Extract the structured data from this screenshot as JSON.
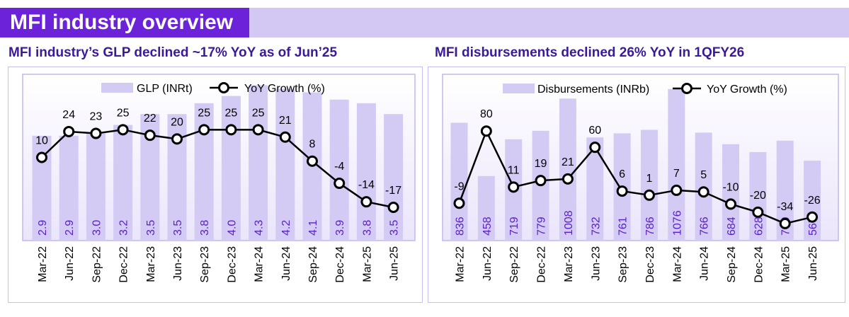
{
  "header": {
    "title": "MFI industry overview"
  },
  "colors": {
    "accent": "#6b22d8",
    "band": "#d3c8f3",
    "bar": "#d4cbf5",
    "bar_label": "#5a1fc8",
    "plot_bg_top": "#ffffff",
    "plot_bg_bottom": "#ebe5fb",
    "plot_border": "#c3b6ee",
    "line": "#000000"
  },
  "chart_data": [
    {
      "type": "bar",
      "title": "MFI industry’s GLP declined ~17% YoY as of Jun’25",
      "categories": [
        "Mar-22",
        "Jun-22",
        "Sep-22",
        "Dec-22",
        "Mar-23",
        "Jun-23",
        "Sep-23",
        "Dec-23",
        "Mar-24",
        "Jun-24",
        "Sep-24",
        "Dec-24",
        "Mar-25",
        "Jun-25"
      ],
      "series": [
        {
          "name": "GLP (INRt)",
          "type": "bar",
          "values": [
            2.9,
            2.9,
            3.0,
            3.2,
            3.5,
            3.5,
            3.8,
            4.0,
            4.3,
            4.2,
            4.1,
            3.9,
            3.8,
            3.5
          ],
          "labels": [
            "2.9",
            "2.9",
            "3.0",
            "3.2",
            "3.5",
            "3.5",
            "3.8",
            "4.0",
            "4.3",
            "4.2",
            "4.1",
            "3.9",
            "3.8",
            "3.5"
          ]
        },
        {
          "name": "YoY Growth (%)",
          "type": "line",
          "values": [
            10,
            24,
            23,
            25,
            22,
            20,
            25,
            25,
            25,
            21,
            8,
            -4,
            -14,
            -17
          ],
          "labels": [
            "10",
            "24",
            "23",
            "25",
            "22",
            "20",
            "25",
            "25",
            "25",
            "21",
            "8",
            "-4",
            "-14",
            "-17"
          ]
        }
      ],
      "bar_range": [
        0,
        4.6
      ],
      "line_range": [
        -35,
        55
      ],
      "legend_position": "top",
      "grid": false
    },
    {
      "type": "bar",
      "title": "MFI disbursements declined 26% YoY in 1QFY26",
      "categories": [
        "Mar-22",
        "Jun-22",
        "Sep-22",
        "Dec-22",
        "Mar-23",
        "Jun-23",
        "Sep-23",
        "Dec-23",
        "Mar-24",
        "Jun-24",
        "Sep-24",
        "Dec-24",
        "Mar-25",
        "Jun-25"
      ],
      "series": [
        {
          "name": "Disbursements (INRb)",
          "type": "bar",
          "values": [
            836,
            458,
            719,
            779,
            1008,
            732,
            761,
            786,
            1076,
            766,
            684,
            628,
            709,
            567
          ],
          "labels": [
            "836",
            "458",
            "719",
            "779",
            "1008",
            "732",
            "761",
            "786",
            "1076",
            "766",
            "684",
            "628",
            "709",
            "567"
          ]
        },
        {
          "name": "YoY Growth (%)",
          "type": "line",
          "values": [
            -9,
            80,
            11,
            19,
            21,
            60,
            6,
            1,
            7,
            5,
            -10,
            -20,
            -34,
            -26
          ],
          "labels": [
            "-9",
            "80",
            "11",
            "19",
            "21",
            "60",
            "6",
            "1",
            "7",
            "5",
            "-10",
            "-20",
            "-34",
            "-26"
          ]
        }
      ],
      "bar_range": [
        0,
        1180
      ],
      "line_range": [
        -55,
        150
      ],
      "legend_position": "top",
      "grid": false
    }
  ]
}
